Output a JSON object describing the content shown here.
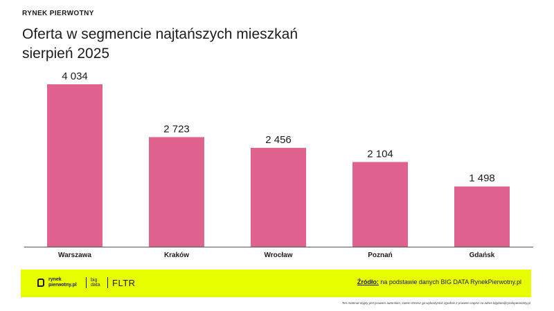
{
  "header": {
    "kicker": "RYNEK PIERWOTNY",
    "title_line1": "Oferta w segmencie najtańszych mieszkań",
    "title_line2": "sierpień 2025"
  },
  "chart_data": {
    "type": "bar",
    "title": "Oferta w segmencie najtańszych mieszkań sierpień 2025",
    "categories": [
      "Warszawa",
      "Kraków",
      "Wrocław",
      "Poznań",
      "Gdańsk"
    ],
    "values": [
      4034,
      2723,
      2456,
      2104,
      1498
    ],
    "value_labels": [
      "4 034",
      "2 723",
      "2 456",
      "2 104",
      "1 498"
    ],
    "xlabel": "",
    "ylabel": "",
    "ylim": [
      0,
      4034
    ],
    "grid": false,
    "legend": "none",
    "bar_color": "#e0638f"
  },
  "footer": {
    "brand_name": "rynek pierwotny.pl",
    "brand_bigdata": "big data",
    "brand_fltr": "FLTR",
    "source_label": "Źródło:",
    "source_text": " na podstawie danych BIG DATA RynekPierwotny.pl",
    "background": "#e8ff00",
    "disclaimer": "Ten materiał objęty jest prawem autorskim, zatem chcesz go wykorzystać zgodnie z prawem napisz na adres bigdata@rynekpierwotny.pl"
  }
}
